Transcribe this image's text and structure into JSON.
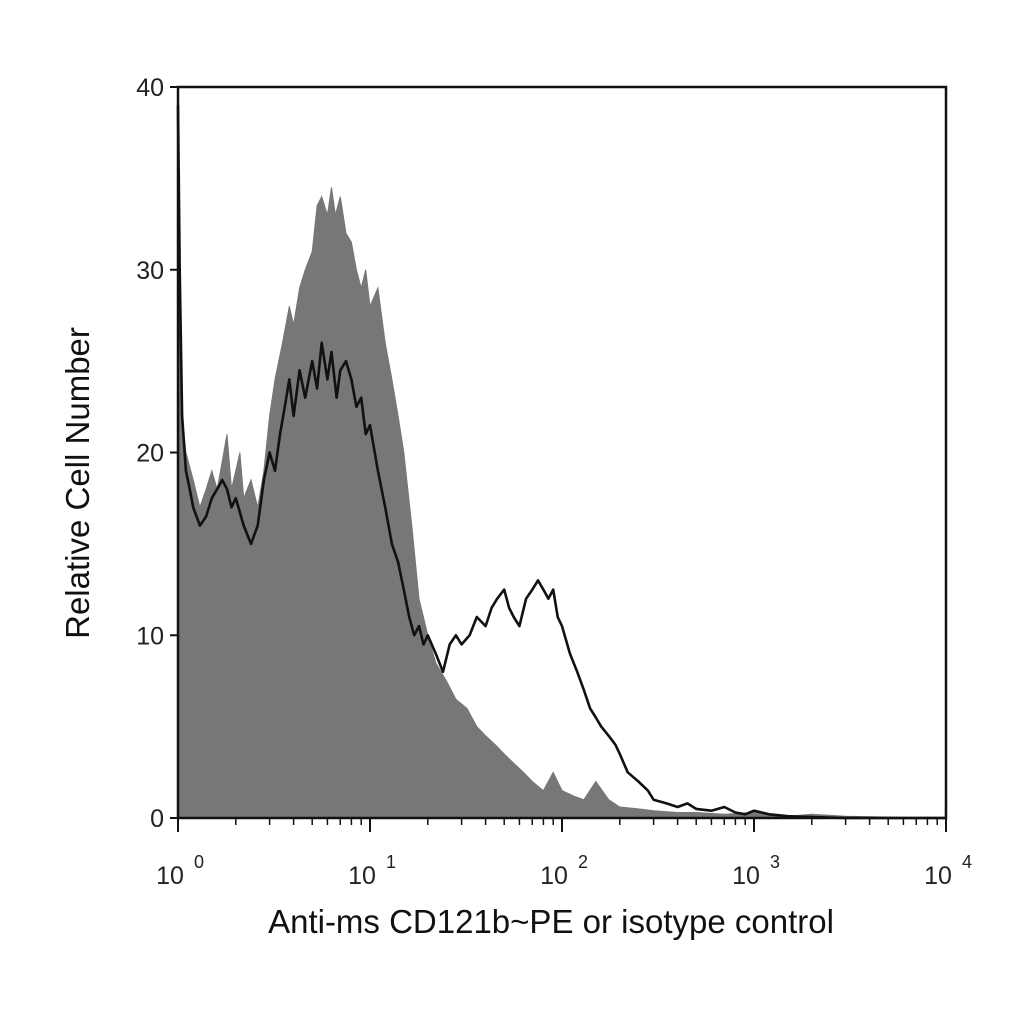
{
  "chart_data": {
    "type": "area",
    "title": "",
    "xlabel": "Anti-ms CD121b~PE or isotype control",
    "ylabel": "Relative Cell Number",
    "xscale": "log",
    "xlim": [
      1,
      10000
    ],
    "ylim": [
      0,
      40
    ],
    "x_ticks": [
      {
        "value": 1,
        "base": "10",
        "exp": "0"
      },
      {
        "value": 10,
        "base": "10",
        "exp": "1"
      },
      {
        "value": 100,
        "base": "10",
        "exp": "2"
      },
      {
        "value": 1000,
        "base": "10",
        "exp": "3"
      },
      {
        "value": 10000,
        "base": "10",
        "exp": "4"
      }
    ],
    "y_ticks": [
      "0",
      "10",
      "20",
      "30",
      "40"
    ],
    "grid": false,
    "legend": "none",
    "series": [
      {
        "style": "filled-gray",
        "color": "#777777",
        "x": [
          1.0,
          1.05,
          1.1,
          1.2,
          1.3,
          1.4,
          1.5,
          1.6,
          1.7,
          1.8,
          1.9,
          2.0,
          2.1,
          2.2,
          2.4,
          2.6,
          2.8,
          3.0,
          3.2,
          3.5,
          3.8,
          4.0,
          4.3,
          4.6,
          5.0,
          5.3,
          5.6,
          6.0,
          6.3,
          6.6,
          7.0,
          7.5,
          8.0,
          8.5,
          9.0,
          9.5,
          10.0,
          11.0,
          12.0,
          13.0,
          14.0,
          15.0,
          16.5,
          18.0,
          20.0,
          22.0,
          25.0,
          28.0,
          32.0,
          36.0,
          40.0,
          45.0,
          50.0,
          56.0,
          63.0,
          70.0,
          80.0,
          90.0,
          100.0,
          115.0,
          130.0,
          150.0,
          175.0,
          200.0,
          250.0,
          300.0,
          400.0,
          500.0,
          700.0,
          1000.0,
          1500.0,
          2000.0,
          3000.0,
          5000.0,
          8000.0,
          9900.0,
          10000.0
        ],
        "values": [
          35.0,
          22.0,
          20.0,
          18.5,
          17.0,
          18.0,
          19.0,
          18.0,
          19.5,
          21.0,
          18.0,
          19.0,
          20.0,
          17.5,
          18.5,
          17.0,
          19.0,
          22.0,
          24.0,
          26.0,
          28.0,
          27.0,
          29.0,
          30.0,
          31.0,
          33.5,
          34.0,
          33.0,
          34.5,
          33.0,
          34.0,
          32.0,
          31.5,
          30.0,
          29.0,
          30.0,
          28.0,
          29.0,
          26.0,
          24.0,
          22.0,
          20.0,
          16.0,
          12.0,
          10.0,
          8.5,
          7.5,
          6.5,
          6.0,
          5.0,
          4.5,
          4.0,
          3.5,
          3.0,
          2.5,
          2.0,
          1.5,
          2.5,
          1.5,
          1.2,
          1.0,
          2.0,
          1.0,
          0.6,
          0.5,
          0.4,
          0.3,
          0.3,
          0.2,
          0.3,
          0.1,
          0.2,
          0.1,
          0.05,
          0.0,
          0.0,
          2.5
        ]
      },
      {
        "style": "black-line",
        "color": "#111111",
        "x": [
          1.0,
          1.02,
          1.05,
          1.1,
          1.15,
          1.2,
          1.3,
          1.4,
          1.5,
          1.6,
          1.7,
          1.8,
          1.9,
          2.0,
          2.2,
          2.4,
          2.6,
          2.8,
          3.0,
          3.2,
          3.4,
          3.6,
          3.8,
          4.0,
          4.3,
          4.6,
          5.0,
          5.3,
          5.6,
          6.0,
          6.3,
          6.7,
          7.0,
          7.5,
          8.0,
          8.5,
          9.0,
          9.5,
          10.0,
          11.0,
          12.0,
          13.0,
          14.0,
          15.0,
          16.0,
          17.0,
          18.0,
          19.0,
          20.0,
          22.0,
          24.0,
          26.0,
          28.0,
          30.0,
          33.0,
          36.0,
          40.0,
          43.0,
          46.0,
          50.0,
          53.0,
          56.0,
          60.0,
          65.0,
          70.0,
          75.0,
          80.0,
          85.0,
          90.0,
          95.0,
          100.0,
          110.0,
          120.0,
          130.0,
          140.0,
          150.0,
          160.0,
          175.0,
          190.0,
          200.0,
          220.0,
          250.0,
          280.0,
          300.0,
          350.0,
          400.0,
          450.0,
          500.0,
          600.0,
          700.0,
          800.0,
          900.0,
          1000.0,
          1200.0,
          1500.0,
          2000.0,
          3000.0,
          5000.0,
          10000.0
        ],
        "values": [
          39.0,
          30.0,
          22.0,
          19.0,
          18.0,
          17.0,
          16.0,
          16.5,
          17.5,
          18.0,
          18.5,
          18.0,
          17.0,
          17.5,
          16.0,
          15.0,
          16.0,
          18.5,
          20.0,
          19.0,
          21.0,
          22.5,
          24.0,
          22.0,
          24.5,
          23.0,
          25.0,
          23.5,
          26.0,
          24.0,
          25.5,
          23.0,
          24.5,
          25.0,
          24.0,
          22.5,
          23.0,
          21.0,
          21.5,
          19.0,
          17.0,
          15.0,
          14.0,
          12.5,
          11.0,
          10.0,
          10.5,
          9.5,
          10.0,
          9.0,
          8.0,
          9.5,
          10.0,
          9.5,
          10.0,
          11.0,
          10.5,
          11.5,
          12.0,
          12.5,
          11.5,
          11.0,
          10.5,
          12.0,
          12.5,
          13.0,
          12.5,
          12.0,
          12.5,
          11.0,
          10.5,
          9.0,
          8.0,
          7.0,
          6.0,
          5.5,
          5.0,
          4.5,
          4.0,
          3.5,
          2.5,
          2.0,
          1.5,
          1.0,
          0.8,
          0.6,
          0.8,
          0.5,
          0.4,
          0.6,
          0.3,
          0.2,
          0.4,
          0.2,
          0.1,
          0.05,
          0.0,
          0.0,
          0.0
        ]
      }
    ]
  }
}
